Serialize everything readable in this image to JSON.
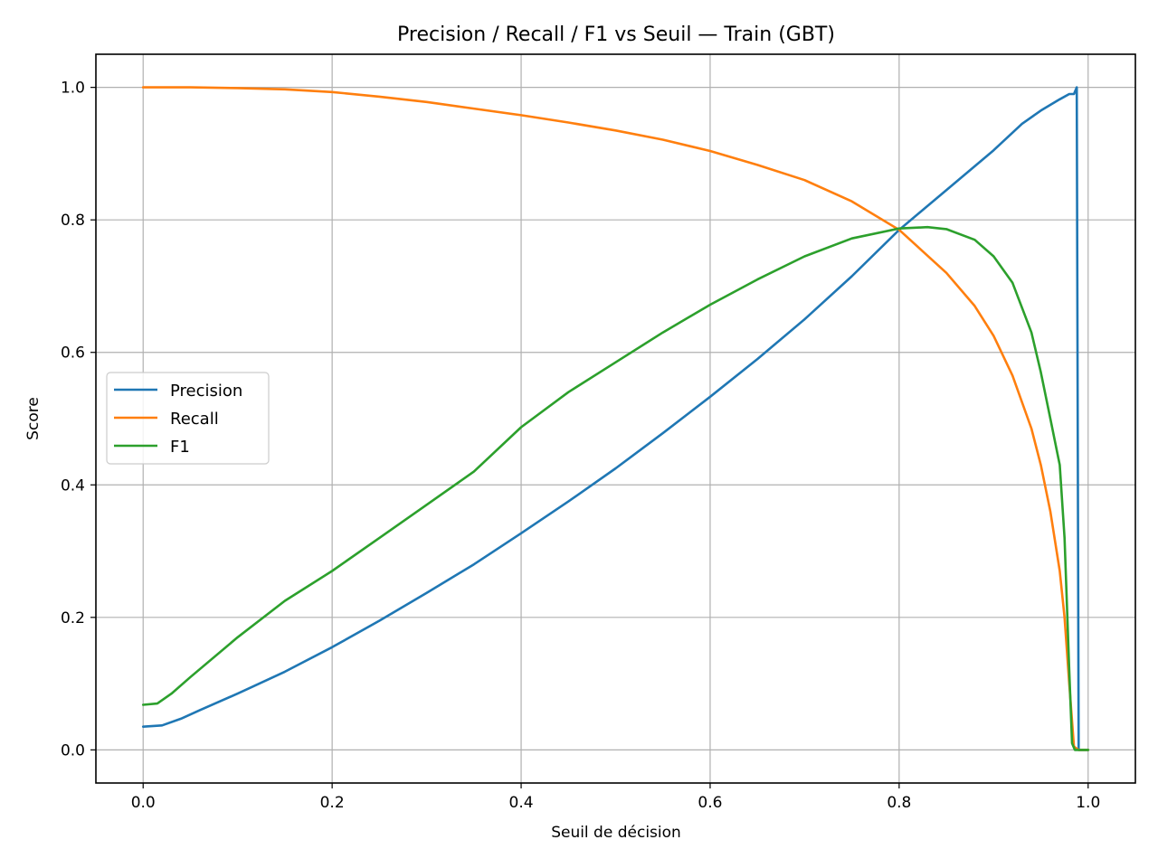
{
  "chart_data": {
    "type": "line",
    "title": "Precision / Recall / F1 vs Seuil — Train (GBT)",
    "xlabel": "Seuil de décision",
    "ylabel": "Score",
    "xlim": [
      -0.05,
      1.05
    ],
    "ylim": [
      -0.05,
      1.05
    ],
    "xticks": [
      0.0,
      0.2,
      0.4,
      0.6,
      0.8,
      1.0
    ],
    "xtick_labels": [
      "0.0",
      "0.2",
      "0.4",
      "0.6",
      "0.8",
      "1.0"
    ],
    "yticks": [
      0.0,
      0.2,
      0.4,
      0.6,
      0.8,
      1.0
    ],
    "ytick_labels": [
      "0.0",
      "0.2",
      "0.4",
      "0.6",
      "0.8",
      "1.0"
    ],
    "grid": true,
    "legend_position": "center-left",
    "series": [
      {
        "name": "Precision",
        "color": "#1f77b4",
        "x": [
          0.0,
          0.02,
          0.04,
          0.06,
          0.1,
          0.15,
          0.2,
          0.25,
          0.3,
          0.35,
          0.4,
          0.45,
          0.5,
          0.55,
          0.6,
          0.65,
          0.7,
          0.75,
          0.8,
          0.85,
          0.9,
          0.93,
          0.95,
          0.97,
          0.98,
          0.985,
          0.988,
          0.99,
          1.0
        ],
        "y": [
          0.035,
          0.037,
          0.047,
          0.06,
          0.085,
          0.118,
          0.155,
          0.195,
          0.237,
          0.28,
          0.327,
          0.375,
          0.425,
          0.478,
          0.533,
          0.59,
          0.65,
          0.715,
          0.785,
          0.845,
          0.905,
          0.945,
          0.965,
          0.982,
          0.99,
          0.99,
          1.0,
          0.0,
          0.0
        ]
      },
      {
        "name": "Recall",
        "color": "#ff7f0e",
        "x": [
          0.0,
          0.05,
          0.1,
          0.15,
          0.2,
          0.25,
          0.3,
          0.35,
          0.4,
          0.45,
          0.5,
          0.55,
          0.6,
          0.65,
          0.7,
          0.75,
          0.8,
          0.85,
          0.88,
          0.9,
          0.92,
          0.94,
          0.95,
          0.96,
          0.97,
          0.975,
          0.98,
          0.985,
          0.99,
          1.0
        ],
        "y": [
          1.0,
          1.0,
          0.999,
          0.997,
          0.993,
          0.986,
          0.978,
          0.968,
          0.958,
          0.947,
          0.935,
          0.921,
          0.904,
          0.883,
          0.86,
          0.828,
          0.785,
          0.72,
          0.67,
          0.625,
          0.565,
          0.485,
          0.43,
          0.36,
          0.27,
          0.2,
          0.1,
          0.005,
          0.0,
          0.0
        ]
      },
      {
        "name": "F1",
        "color": "#2ca02c",
        "x": [
          0.0,
          0.015,
          0.03,
          0.05,
          0.1,
          0.15,
          0.2,
          0.25,
          0.3,
          0.35,
          0.4,
          0.45,
          0.5,
          0.55,
          0.6,
          0.65,
          0.7,
          0.75,
          0.8,
          0.83,
          0.85,
          0.88,
          0.9,
          0.92,
          0.94,
          0.95,
          0.96,
          0.97,
          0.975,
          0.98,
          0.983,
          0.986,
          1.0
        ],
        "y": [
          0.068,
          0.07,
          0.085,
          0.11,
          0.17,
          0.225,
          0.27,
          0.32,
          0.37,
          0.42,
          0.487,
          0.54,
          0.585,
          0.63,
          0.672,
          0.71,
          0.745,
          0.772,
          0.787,
          0.789,
          0.786,
          0.77,
          0.745,
          0.705,
          0.63,
          0.57,
          0.5,
          0.43,
          0.32,
          0.12,
          0.01,
          0.0,
          0.0
        ]
      }
    ]
  }
}
